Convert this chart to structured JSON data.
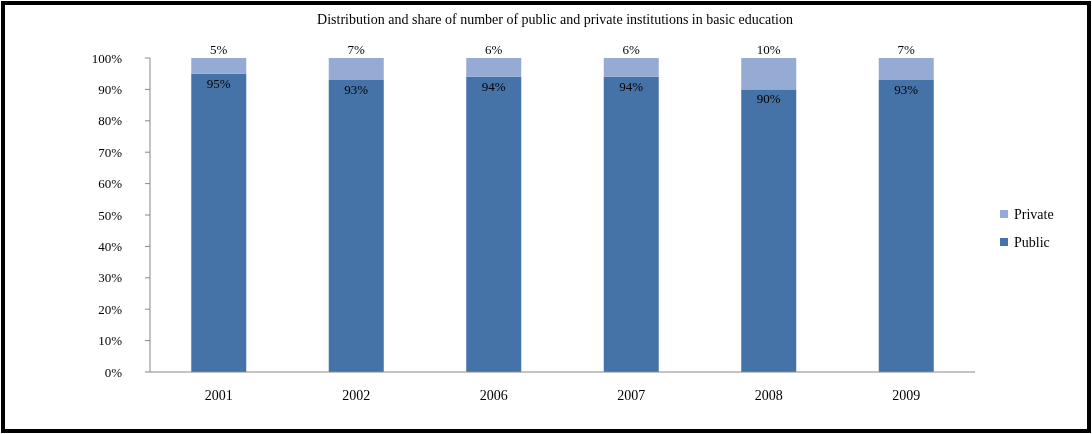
{
  "chart_data": {
    "type": "bar",
    "title": "Distribution and share of number of public and private institutions in basic  education",
    "categories": [
      "2001",
      "2002",
      "2006",
      "2007",
      "2008",
      "2009"
    ],
    "stacked": true,
    "legend": "right",
    "grid": false,
    "ylim": [
      0,
      100
    ],
    "yticks": [
      {
        "value": 0,
        "label": "0%"
      },
      {
        "value": 10,
        "label": "10%"
      },
      {
        "value": 20,
        "label": "20%"
      },
      {
        "value": 30,
        "label": "30%"
      },
      {
        "value": 40,
        "label": "40%"
      },
      {
        "value": 50,
        "label": "50%"
      },
      {
        "value": 60,
        "label": "60%"
      },
      {
        "value": 70,
        "label": "70%"
      },
      {
        "value": 80,
        "label": "80%"
      },
      {
        "value": 90,
        "label": "90%"
      },
      {
        "value": 100,
        "label": "100%"
      }
    ],
    "series": [
      {
        "name": "Public",
        "color": "#4572a7",
        "values": [
          95,
          93,
          94,
          94,
          90,
          93
        ],
        "value_labels": [
          "95%",
          "93%",
          "94%",
          "94%",
          "90%",
          "93%"
        ]
      },
      {
        "name": "Private",
        "color": "#95abd4",
        "values": [
          5,
          7,
          6,
          6,
          10,
          7
        ],
        "value_labels": [
          "5%",
          "7%",
          "6%",
          "6%",
          "10%",
          "7%"
        ]
      }
    ]
  }
}
